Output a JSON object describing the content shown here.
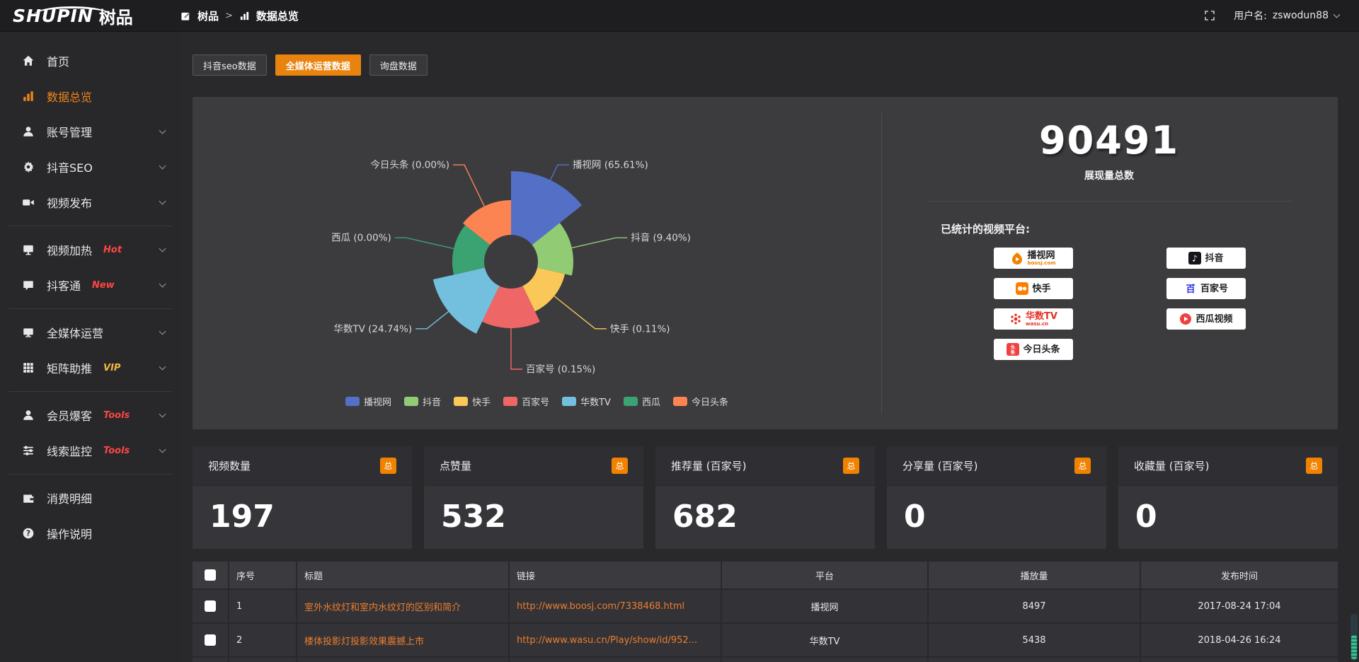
{
  "topbar": {
    "logo_main": "SHUPIN",
    "logo_cn": "树品",
    "breadcrumb_root": "树品",
    "breadcrumb_sep": ">",
    "breadcrumb_current": "数据总览",
    "username_label": "用户名:",
    "username": "zswodun88"
  },
  "sidebar": {
    "items": [
      {
        "label": "首页",
        "icon": "home-icon",
        "active": false
      },
      {
        "label": "数据总览",
        "icon": "bar-chart-icon",
        "active": true
      },
      {
        "label": "账号管理",
        "icon": "user-icon",
        "chevron": true
      },
      {
        "label": "抖音SEO",
        "icon": "gear-icon",
        "chevron": true
      },
      {
        "label": "视频发布",
        "icon": "video-camera-icon",
        "chevron": true
      },
      {
        "label": "视频加热",
        "icon": "monitor-icon",
        "badge": "Hot",
        "badge_color": "#ff4545",
        "chevron": true
      },
      {
        "label": "抖客通",
        "icon": "comment-icon",
        "badge": "New",
        "badge_color": "#ff4545",
        "chevron": true
      },
      {
        "label": "全媒体运营",
        "icon": "monitor-icon",
        "chevron": true
      },
      {
        "label": "矩阵助推",
        "icon": "grid-icon",
        "badge": "VIP",
        "badge_color": "#f5b63f",
        "chevron": true
      },
      {
        "label": "会员爆客",
        "icon": "user-icon",
        "badge": "Tools",
        "badge_color": "#ff4545",
        "chevron": true
      },
      {
        "label": "线索监控",
        "icon": "sliders-icon",
        "badge": "Tools",
        "badge_color": "#ff4545",
        "chevron": true
      },
      {
        "label": "消费明细",
        "icon": "wallet-icon"
      },
      {
        "label": "操作说明",
        "icon": "question-icon"
      }
    ]
  },
  "tabs": [
    {
      "label": "抖音seo数据",
      "active": false
    },
    {
      "label": "全媒体运营数据",
      "active": true
    },
    {
      "label": "询盘数据",
      "active": false
    }
  ],
  "chart_data": {
    "type": "pie",
    "subtype": "nightingale-rose",
    "title": "",
    "legend_position": "bottom",
    "series": [
      {
        "name": "播视网",
        "pct": 65.61,
        "label": "播视网 (65.61%)",
        "color": "#5470c6"
      },
      {
        "name": "抖音",
        "pct": 9.4,
        "label": "抖音 (9.40%)",
        "color": "#91cc75"
      },
      {
        "name": "快手",
        "pct": 0.11,
        "label": "快手 (0.11%)",
        "color": "#fac858"
      },
      {
        "name": "百家号",
        "pct": 0.15,
        "label": "百家号 (0.15%)",
        "color": "#ee6666"
      },
      {
        "name": "华数TV",
        "pct": 24.74,
        "label": "华数TV (24.74%)",
        "color": "#73c0de"
      },
      {
        "name": "西瓜",
        "pct": 0.0,
        "label": "西瓜 (0.00%)",
        "color": "#3ba272"
      },
      {
        "name": "今日头条",
        "pct": 0.0,
        "label": "今日头条 (0.00%)",
        "color": "#fc8452"
      }
    ],
    "legend": [
      "播视网",
      "抖音",
      "快手",
      "百家号",
      "华数TV",
      "西瓜",
      "今日头条"
    ],
    "layout": {
      "start_angle": -90,
      "equal_angles": true,
      "inner_radius": 38,
      "label_radius": 152,
      "radii": [
        128,
        88,
        78,
        94,
        113,
        83,
        87
      ]
    }
  },
  "summary": {
    "total_value": "90491",
    "total_label": "展现量总数",
    "platforms_title": "已统计的视频平台:",
    "platforms": [
      {
        "name": "播视网",
        "sub": "boosj.com"
      },
      {
        "name": "抖音"
      },
      {
        "name": "快手"
      },
      {
        "name": "百家号"
      },
      {
        "name": "华数TV",
        "sub": "wasu.cn"
      },
      {
        "name": "西瓜视频"
      },
      {
        "name": "今日头条"
      }
    ]
  },
  "stat_cards": [
    {
      "title": "视频数量",
      "badge": "总",
      "value": "197"
    },
    {
      "title": "点赞量",
      "badge": "总",
      "value": "532"
    },
    {
      "title": "推荐量 (百家号)",
      "badge": "总",
      "value": "682"
    },
    {
      "title": "分享量 (百家号)",
      "badge": "总",
      "value": "0"
    },
    {
      "title": "收藏量 (百家号)",
      "badge": "总",
      "value": "0"
    }
  ],
  "table": {
    "headers": [
      "序号",
      "标题",
      "链接",
      "平台",
      "播放量",
      "发布时间"
    ],
    "rows": [
      {
        "index": "1",
        "title": "室外水纹灯和室内水纹灯的区别和简介",
        "link": "http://www.boosj.com/7338468.html",
        "platform": "播视网",
        "views": "8497",
        "time": "2017-08-24 17:04"
      },
      {
        "index": "2",
        "title": "楼体投影灯投影效果震撼上市",
        "link": "http://www.wasu.cn/Play/show/id/952...",
        "platform": "华数TV",
        "views": "5438",
        "time": "2018-04-26 16:24"
      }
    ]
  },
  "colors": {
    "accent_orange": "#f08200",
    "tab_active": "#e8830f",
    "sidebar_active": "#f08519",
    "link_orange": "#ed7d2f",
    "hot_red": "#ff4545",
    "vip_yellow": "#f5b63f",
    "panel_bg": "#3c3c3f",
    "page_bg": "#29292b"
  }
}
